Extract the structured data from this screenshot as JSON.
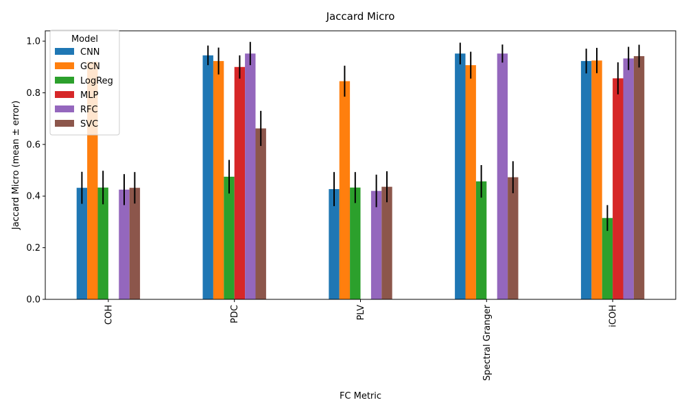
{
  "chart_data": {
    "type": "bar",
    "title": "Jaccard Micro",
    "xlabel": "FC Metric",
    "ylabel": "Jaccard Micro (mean ± error)",
    "ylim": [
      0,
      1.04
    ],
    "yticks": [
      0.0,
      0.2,
      0.4,
      0.6,
      0.8,
      1.0
    ],
    "ytick_labels": [
      "0.0",
      "0.2",
      "0.4",
      "0.6",
      "0.8",
      "1.0"
    ],
    "categories": [
      "COH",
      "PDC",
      "PLV",
      "Spectral Granger",
      "iCOH"
    ],
    "legend": {
      "title": "Model",
      "placement": "top-left"
    },
    "grid": false,
    "series": [
      {
        "name": "CNN",
        "color": "#1f77b4",
        "values": [
          0.432,
          0.945,
          0.427,
          0.952,
          0.923
        ],
        "errors": [
          0.062,
          0.038,
          0.066,
          0.042,
          0.048
        ]
      },
      {
        "name": "GCN",
        "color": "#ff7f0e",
        "values": [
          0.92,
          0.923,
          0.845,
          0.907,
          0.925
        ],
        "errors": [
          0.0,
          0.052,
          0.06,
          0.052,
          0.049
        ]
      },
      {
        "name": "LogReg",
        "color": "#2ca02c",
        "values": [
          0.433,
          0.475,
          0.433,
          0.457,
          0.315
        ],
        "errors": [
          0.065,
          0.065,
          0.06,
          0.063,
          0.05
        ]
      },
      {
        "name": "MLP",
        "color": "#d62728",
        "values": [
          null,
          0.9,
          null,
          null,
          0.856
        ],
        "errors": [
          0,
          0.045,
          0,
          0,
          0.062
        ]
      },
      {
        "name": "RFC",
        "color": "#9467bd",
        "values": [
          0.425,
          0.952,
          0.42,
          0.952,
          0.933
        ],
        "errors": [
          0.06,
          0.045,
          0.063,
          0.035,
          0.045
        ]
      },
      {
        "name": "SVC",
        "color": "#8c564b",
        "values": [
          0.432,
          0.662,
          0.436,
          0.473,
          0.942
        ],
        "errors": [
          0.061,
          0.068,
          0.06,
          0.062,
          0.044
        ]
      }
    ]
  }
}
